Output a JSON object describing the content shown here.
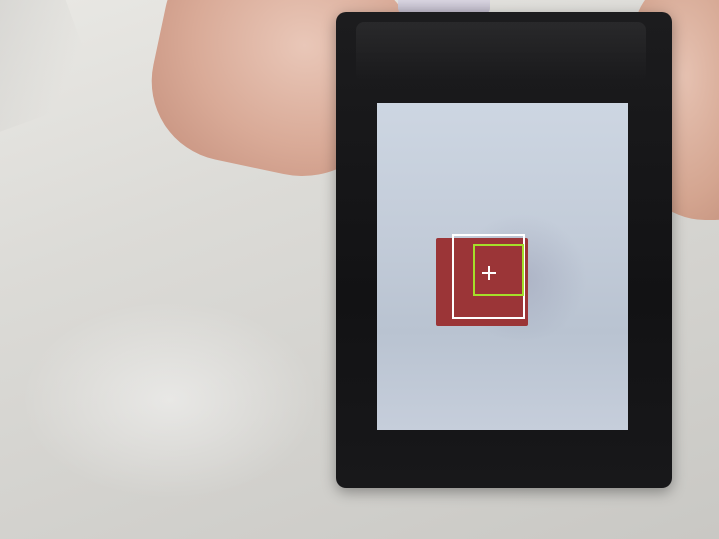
{
  "scene": {
    "description_colors": {
      "background": "#dcdbd7",
      "device_bezel": "#161618",
      "screen": "#c3ccd9",
      "target_object": "#9b3537",
      "outer_box": "#ffffff",
      "inner_box": "#a5e02a"
    },
    "icons": {
      "crosshair": "crosshair-icon"
    }
  }
}
